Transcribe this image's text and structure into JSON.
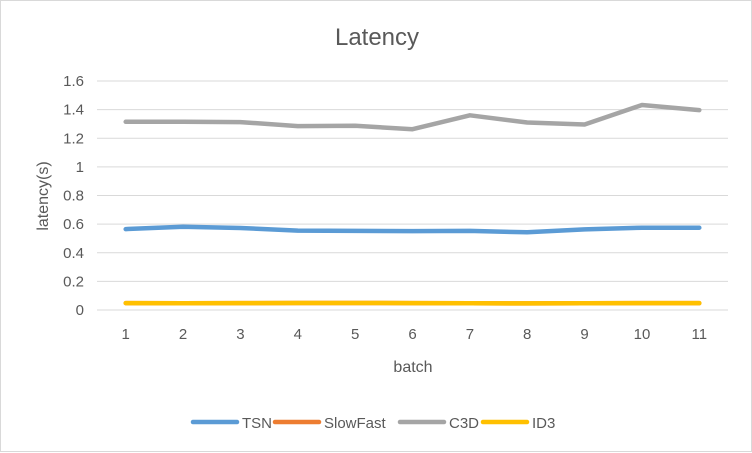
{
  "chart_data": {
    "type": "line",
    "title": "Latency",
    "xlabel": "batch",
    "ylabel": "latency(s)",
    "categories": [
      "1",
      "2",
      "3",
      "4",
      "5",
      "6",
      "7",
      "8",
      "9",
      "10",
      "11"
    ],
    "ylim": [
      0,
      1.6
    ],
    "yticks": [
      "0",
      "0.2",
      "0.4",
      "0.6",
      "0.8",
      "1",
      "1.2",
      "1.4",
      "1.6"
    ],
    "grid": true,
    "legend_position": "bottom",
    "series": [
      {
        "name": "TSN",
        "color": "#5b9bd5",
        "values": [
          0.565,
          0.582,
          0.573,
          0.555,
          0.553,
          0.551,
          0.553,
          0.543,
          0.563,
          0.575,
          0.575
        ]
      },
      {
        "name": "SlowFast",
        "color": "#ed7d31",
        "values": [
          0.048,
          0.047,
          0.048,
          0.049,
          0.049,
          0.048,
          0.047,
          0.046,
          0.047,
          0.048,
          0.048
        ]
      },
      {
        "name": "C3D",
        "color": "#a5a5a5",
        "values": [
          1.315,
          1.315,
          1.313,
          1.285,
          1.287,
          1.263,
          1.36,
          1.31,
          1.296,
          1.432,
          1.397
        ]
      },
      {
        "name": "ID3",
        "color": "#ffc000",
        "values": [
          0.048,
          0.047,
          0.048,
          0.049,
          0.049,
          0.048,
          0.047,
          0.046,
          0.047,
          0.048,
          0.048
        ]
      }
    ]
  }
}
